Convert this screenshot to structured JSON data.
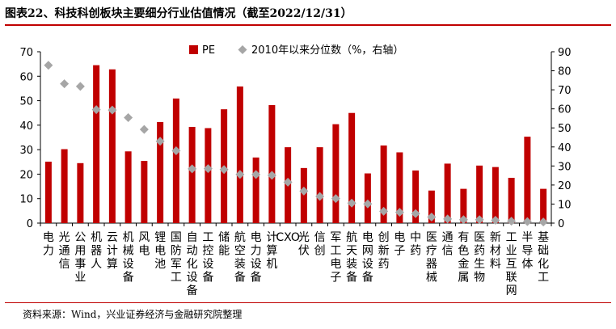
{
  "title": "图表22、科技科创板块主要细分行业估值情况（截至2022/12/31）",
  "source": "资料来源：Wind，兴业证券经济与金融研究院整理",
  "chart_data": {
    "type": "bar",
    "categories": [
      "电力",
      "光通信",
      "公用事业",
      "机器人",
      "云计算",
      "机械设备",
      "风电",
      "锂电池",
      "国防军工",
      "自动化设备",
      "工控设备",
      "储能",
      "航空装备",
      "电力设备",
      "计算机",
      "CXO",
      "光伏",
      "信创",
      "军工电子",
      "航天装备",
      "电网设备",
      "创新药",
      "电子",
      "中药",
      "医疗器械",
      "通信",
      "有色金属",
      "医药生物",
      "新材料",
      "工业互联网",
      "半导体",
      "基础化工"
    ],
    "series": [
      {
        "name": "PE",
        "axis": "left",
        "color": "#c00000",
        "values": [
          25.1,
          30.2,
          24.5,
          64.5,
          62.8,
          29.3,
          25.4,
          41.3,
          50.9,
          39.3,
          38.8,
          46.5,
          55.8,
          26.8,
          48.2,
          31.0,
          22.5,
          31.0,
          40.4,
          45.0,
          20.3,
          31.7,
          28.9,
          21.5,
          13.3,
          24.3,
          14.0,
          23.5,
          22.9,
          18.5,
          35.3,
          14.0
        ]
      },
      {
        "name": "2010年以来分位数（%，右轴）",
        "axis": "right",
        "color": "#a6a6a6",
        "values": [
          82.9,
          73.2,
          71.8,
          59.6,
          59.4,
          55.4,
          49.2,
          43.0,
          38.0,
          28.5,
          28.6,
          28.1,
          25.6,
          25.5,
          25.1,
          21.5,
          16.8,
          14.0,
          12.9,
          10.5,
          10.1,
          6.2,
          5.7,
          5.0,
          3.2,
          2.2,
          1.8,
          1.8,
          1.5,
          1.0,
          0.8,
          0.6
        ]
      }
    ],
    "y_left": {
      "min": 0,
      "max": 70,
      "ticks": [
        0,
        10,
        20,
        30,
        40,
        50,
        60,
        70
      ]
    },
    "y_right": {
      "min": 0,
      "max": 90,
      "ticks": [
        0,
        10,
        20,
        30,
        40,
        50,
        60,
        70,
        80,
        90
      ]
    },
    "grid": false,
    "legend_position": "top-center"
  }
}
